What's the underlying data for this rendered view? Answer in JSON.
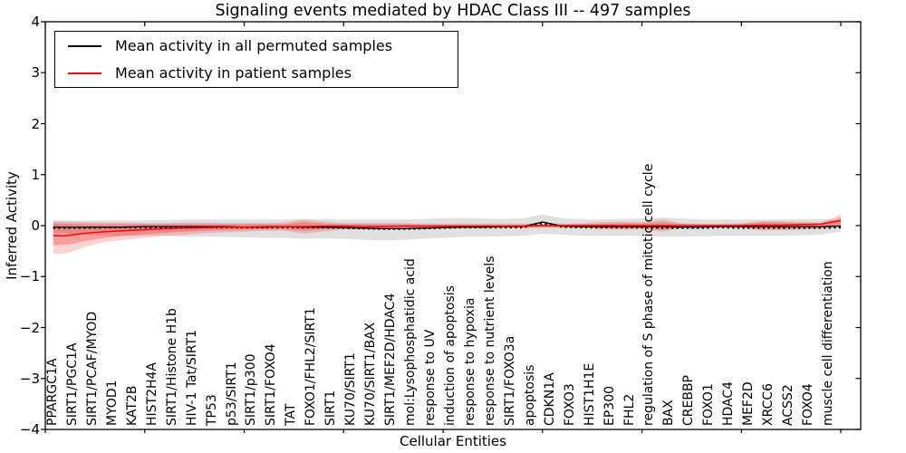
{
  "title": "Signaling events mediated by HDAC Class III -- 497 samples",
  "axes": {
    "x_label": "Cellular Entities",
    "y_label": "Inferred Activity",
    "y_tick_labels": [
      "4",
      "3",
      "2",
      "1",
      "0",
      "−1",
      "−2",
      "−3",
      "−4"
    ]
  },
  "legend": {
    "items": [
      {
        "label": "Mean activity in all permuted samples",
        "color": "#000000",
        "style": "solid"
      },
      {
        "label": "Mean activity in patient samples",
        "color": "#ff0000",
        "style": "solid"
      }
    ]
  },
  "chart_data": {
    "type": "line",
    "title": "Signaling events mediated by HDAC Class III -- 497 samples",
    "xlabel": "Cellular Entities",
    "ylabel": "Inferred Activity",
    "ylim": [
      -4,
      4
    ],
    "xlim": [
      0,
      41
    ],
    "grid": false,
    "legend_position": "upper left",
    "x_major_ticks": [
      0,
      5,
      10,
      15,
      20,
      25,
      30,
      35,
      40
    ],
    "y_major_ticks": [
      4,
      3,
      2,
      1,
      0,
      -1,
      -2,
      -3,
      -4
    ],
    "categories": [
      "PPARGC1A",
      "SIRT1/PGC1A",
      "SIRT1/PCAF/MYOD",
      "MYOD1",
      "KAT2B",
      "HIST2H4A",
      "SIRT1/Histone H1b",
      "HIV-1 Tat/SIRT1",
      "TP53",
      "p53/SIRT1",
      "SIRT1/p300",
      "SIRT1/FOXO4",
      "TAT",
      "FOXO1/FHL2/SIRT1",
      "SIRT1",
      "KU70/SIRT1",
      "KU70/SIRT1/BAX",
      "SIRT1/MEF2D/HDAC4",
      "mol:Lysophosphatidic acid",
      "response to UV",
      "induction of apoptosis",
      "response to hypoxia",
      "response to nutrient levels",
      "SIRT1/FOXO3a",
      "apoptosis",
      "CDKN1A",
      "FOXO3",
      "HIST1H1E",
      "EP300",
      "FHL2",
      "regulation of S phase of mitotic cell cycle",
      "BAX",
      "CREBBP",
      "FOXO1",
      "HDAC4",
      "MEF2D",
      "XRCC6",
      "ACSS2",
      "FOXO4",
      "muscle cell differentiation"
    ],
    "series": [
      {
        "name": "Mean activity in all permuted samples",
        "color": "#000000",
        "style": "solid",
        "width": 1.3,
        "values": [
          -0.03,
          -0.03,
          -0.03,
          -0.03,
          -0.02,
          -0.02,
          -0.02,
          -0.02,
          -0.02,
          -0.03,
          -0.03,
          -0.02,
          -0.03,
          -0.03,
          -0.04,
          -0.05,
          -0.06,
          -0.06,
          -0.05,
          -0.04,
          -0.03,
          -0.03,
          -0.02,
          -0.02,
          0.07,
          -0.01,
          -0.02,
          -0.02,
          -0.02,
          -0.02,
          -0.02,
          -0.03,
          -0.03,
          -0.02,
          -0.02,
          -0.02,
          -0.02,
          -0.02,
          -0.02,
          -0.01
        ]
      },
      {
        "name": "permuted median (dotted)",
        "color": "#000000",
        "style": "dotted",
        "width": 1.7,
        "values": [
          -0.05,
          -0.05,
          -0.04,
          -0.04,
          -0.04,
          -0.04,
          -0.04,
          -0.04,
          -0.04,
          -0.04,
          -0.04,
          -0.04,
          -0.04,
          -0.04,
          -0.05,
          -0.06,
          -0.07,
          -0.07,
          -0.06,
          -0.05,
          -0.04,
          -0.04,
          -0.04,
          -0.04,
          0.04,
          -0.03,
          -0.04,
          -0.04,
          -0.04,
          -0.04,
          -0.05,
          -0.05,
          -0.05,
          -0.04,
          -0.05,
          -0.05,
          -0.05,
          -0.05,
          -0.05,
          -0.04
        ]
      },
      {
        "name": "Mean activity in patient samples",
        "color": "#ff0000",
        "style": "solid",
        "width": 1.5,
        "values": [
          -0.2,
          -0.15,
          -0.12,
          -0.1,
          -0.08,
          -0.06,
          -0.05,
          -0.04,
          -0.03,
          -0.03,
          -0.02,
          -0.02,
          -0.02,
          -0.01,
          -0.01,
          -0.02,
          -0.02,
          -0.01,
          -0.01,
          -0.01,
          -0.01,
          -0.01,
          -0.01,
          -0.01,
          0,
          0,
          0,
          0,
          0,
          0,
          0,
          0,
          0,
          0,
          0,
          0.01,
          0.01,
          0.02,
          0.03,
          0.1
        ]
      }
    ],
    "bands": [
      {
        "name": "permuted range",
        "color": "rgba(0,0,0,0.12)",
        "upper": [
          0.1,
          0.1,
          0.1,
          0.1,
          0.1,
          0.11,
          0.12,
          0.12,
          0.12,
          0.12,
          0.12,
          0.12,
          0.13,
          0.13,
          0.12,
          0.12,
          0.12,
          0.12,
          0.13,
          0.14,
          0.15,
          0.14,
          0.13,
          0.14,
          0.22,
          0.14,
          0.12,
          0.12,
          0.13,
          0.14,
          0.16,
          0.14,
          0.12,
          0.12,
          0.12,
          0.12,
          0.12,
          0.13,
          0.13,
          0.1
        ],
        "lower": [
          -0.15,
          -0.18,
          -0.2,
          -0.2,
          -0.2,
          -0.2,
          -0.22,
          -0.22,
          -0.22,
          -0.23,
          -0.24,
          -0.24,
          -0.26,
          -0.25,
          -0.26,
          -0.28,
          -0.29,
          -0.28,
          -0.26,
          -0.24,
          -0.22,
          -0.22,
          -0.21,
          -0.2,
          -0.16,
          -0.18,
          -0.2,
          -0.2,
          -0.2,
          -0.2,
          -0.22,
          -0.22,
          -0.21,
          -0.2,
          -0.2,
          -0.2,
          -0.2,
          -0.19,
          -0.18,
          -0.12
        ]
      },
      {
        "name": "patient range outer",
        "color": "rgba(255,0,0,0.18)",
        "upper": [
          0.08,
          0.07,
          0.06,
          0.06,
          0.05,
          0.05,
          0.06,
          0.06,
          0.05,
          0.05,
          0.05,
          0.06,
          0.12,
          0.08,
          0.05,
          0.05,
          0.05,
          0.05,
          0.04,
          0.04,
          0.04,
          0.04,
          0.04,
          0.04,
          0.04,
          0.04,
          0.05,
          0.07,
          0.08,
          0.07,
          0.12,
          0.05,
          0.04,
          0.04,
          0.05,
          0.09,
          0.09,
          0.08,
          0.06,
          0.22
        ],
        "lower": [
          -0.55,
          -0.42,
          -0.32,
          -0.28,
          -0.24,
          -0.2,
          -0.18,
          -0.15,
          -0.13,
          -0.12,
          -0.1,
          -0.1,
          -0.16,
          -0.11,
          -0.08,
          -0.07,
          -0.07,
          -0.06,
          -0.06,
          -0.05,
          -0.05,
          -0.05,
          -0.05,
          -0.05,
          -0.04,
          -0.04,
          -0.05,
          -0.07,
          -0.08,
          -0.07,
          -0.12,
          -0.05,
          -0.04,
          -0.04,
          -0.05,
          -0.09,
          -0.09,
          -0.08,
          -0.06,
          -0.02
        ]
      },
      {
        "name": "patient range inner",
        "color": "rgba(255,0,0,0.25)",
        "upper": [
          0.04,
          0.03,
          0.03,
          0.03,
          0.03,
          0.03,
          0.03,
          0.03,
          0.03,
          0.03,
          0.03,
          0.03,
          0.07,
          0.04,
          0.03,
          0.03,
          0.03,
          0.03,
          0.02,
          0.02,
          0.02,
          0.02,
          0.02,
          0.02,
          0.02,
          0.02,
          0.03,
          0.04,
          0.05,
          0.04,
          0.07,
          0.03,
          0.02,
          0.02,
          0.03,
          0.06,
          0.06,
          0.05,
          0.04,
          0.16
        ],
        "lower": [
          -0.38,
          -0.3,
          -0.24,
          -0.2,
          -0.17,
          -0.14,
          -0.12,
          -0.1,
          -0.09,
          -0.08,
          -0.07,
          -0.07,
          -0.1,
          -0.07,
          -0.05,
          -0.05,
          -0.05,
          -0.04,
          -0.04,
          -0.03,
          -0.03,
          -0.03,
          -0.03,
          -0.03,
          -0.03,
          -0.03,
          -0.03,
          -0.05,
          -0.06,
          -0.05,
          -0.08,
          -0.03,
          -0.03,
          -0.03,
          -0.03,
          -0.06,
          -0.06,
          -0.05,
          -0.04,
          -0.01
        ]
      }
    ]
  }
}
